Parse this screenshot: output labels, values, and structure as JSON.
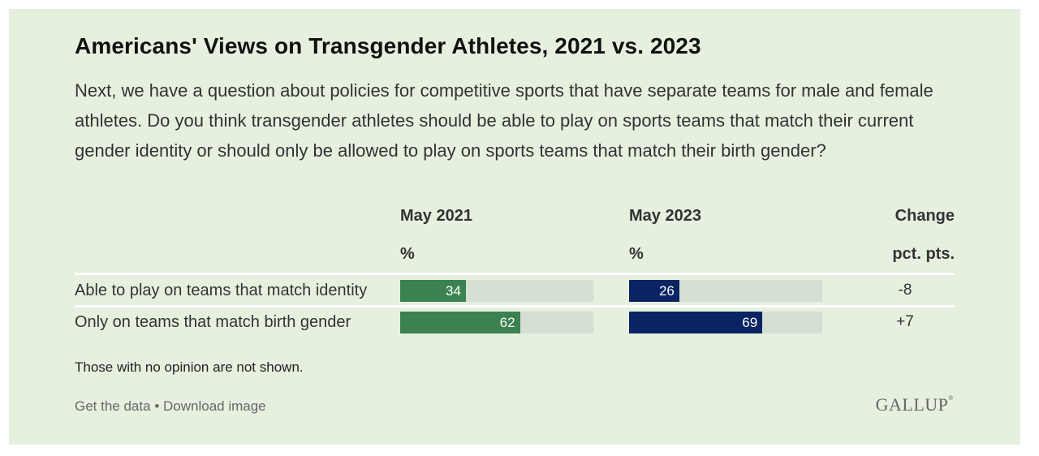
{
  "title": "Americans' Views on Transgender Athletes, 2021 vs. 2023",
  "question": "Next, we have a question about policies for competitive sports that have separate teams for male and female athletes. Do you think transgender athletes should be able to play on sports teams that match their current gender identity or should only be allowed to play on sports teams that match their birth gender?",
  "columns": {
    "col1_header": "May 2021",
    "col1_unit": "%",
    "col2_header": "May 2023",
    "col2_unit": "%",
    "col3_header": "Change",
    "col3_unit": "pct. pts."
  },
  "chart_data": {
    "type": "bar",
    "title": "Americans' Views on Transgender Athletes, 2021 vs. 2023",
    "categories": [
      "Able to play on teams that match identity",
      "Only on teams that match birth gender"
    ],
    "series": [
      {
        "name": "May 2021",
        "values": [
          34,
          62
        ],
        "color": "#3b8250"
      },
      {
        "name": "May 2023",
        "values": [
          26,
          69
        ],
        "color": "#0a2463"
      }
    ],
    "change": [
      "-8",
      "+7"
    ],
    "ylim": [
      0,
      100
    ],
    "unit": "%"
  },
  "colors": {
    "background": "#e6f0df",
    "track": "#d6dfd3",
    "series_2021": "#3b8250",
    "series_2023": "#0a2463"
  },
  "note": "Those with no opinion are not shown.",
  "links": {
    "get_data": "Get the data",
    "separator": "•",
    "download": "Download image"
  },
  "logo": "GALLUP",
  "logo_mark": "®"
}
